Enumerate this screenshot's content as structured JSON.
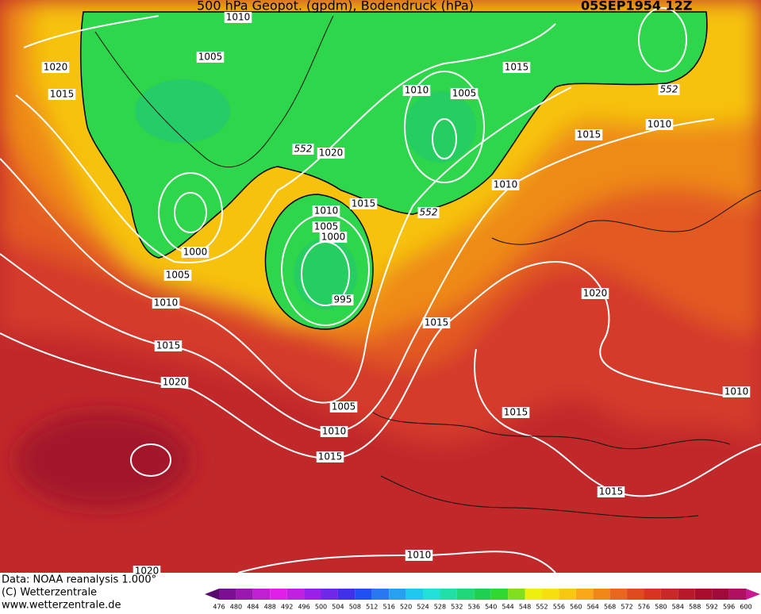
{
  "header": {
    "title": "500 hPa Geopot. (gpdm), Bodendruck (hPa)",
    "date": "05SEP1954 12Z"
  },
  "contour_labels": [
    1010,
    1020,
    1015,
    1005,
    1020,
    1010,
    1005,
    1015,
    1010,
    1015,
    1010,
    1015,
    1010,
    1005,
    1000,
    1000,
    1005,
    1010,
    995,
    1015,
    1020,
    1015,
    1020,
    1005,
    1010,
    1015,
    1015,
    1010,
    1015,
    1010,
    1020
  ],
  "geopotential_labels": [
    552,
    552,
    552,
    552
  ],
  "footer": [
    "Data: NOAA reanalysis 1.000°",
    "(C) Wetterzentrale",
    "www.wetterzentrale.de"
  ],
  "colorbar": {
    "ticks": [
      476,
      480,
      484,
      488,
      492,
      496,
      500,
      504,
      508,
      512,
      516,
      520,
      524,
      528,
      532,
      536,
      540,
      544,
      548,
      552,
      556,
      560,
      564,
      568,
      572,
      576,
      580,
      584,
      588,
      592,
      596,
      600
    ]
  }
}
